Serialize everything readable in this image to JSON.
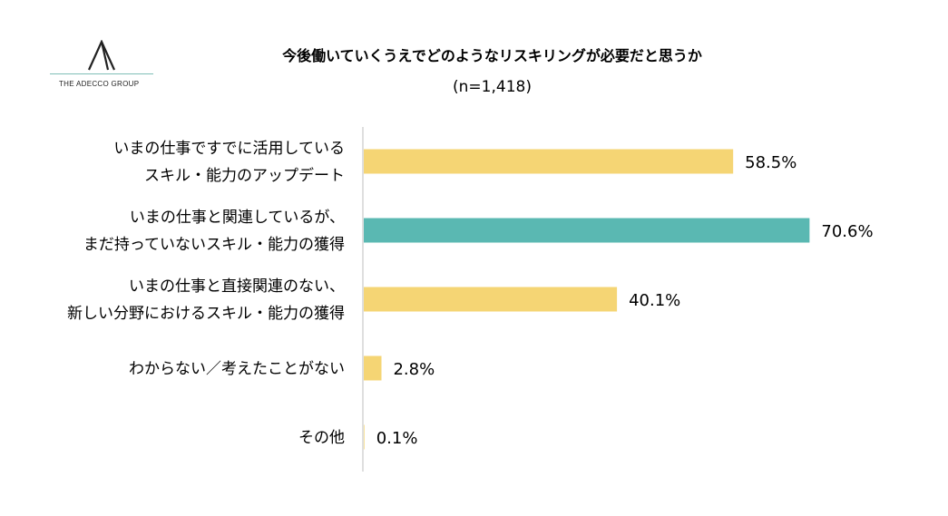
{
  "logo": {
    "brand": "THE ADECCO GROUP"
  },
  "chart_data": {
    "type": "bar",
    "orientation": "horizontal",
    "title": "今後働いていくうえでどのようなリスキリングが必要だと思うか",
    "subtitle": "(n=1,418)",
    "categories": [
      [
        "いまの仕事ですでに活用している",
        "スキル・能力のアップデート"
      ],
      [
        "いまの仕事と関連しているが、",
        "まだ持っていないスキル・能力の獲得"
      ],
      [
        "いまの仕事と直接関連のない、",
        "新しい分野におけるスキル・能力の獲得"
      ],
      [
        "わからない／考えたことがない"
      ],
      [
        "その他"
      ]
    ],
    "values": [
      58.5,
      70.6,
      40.1,
      2.8,
      0.1
    ],
    "value_labels": [
      "58.5%",
      "70.6%",
      "40.1%",
      "2.8%",
      "0.1%"
    ],
    "colors": [
      "#f5d574",
      "#5ab8b2",
      "#f5d574",
      "#f5d574",
      "#f5d574"
    ],
    "xlim": [
      0,
      100
    ],
    "grid": false
  }
}
